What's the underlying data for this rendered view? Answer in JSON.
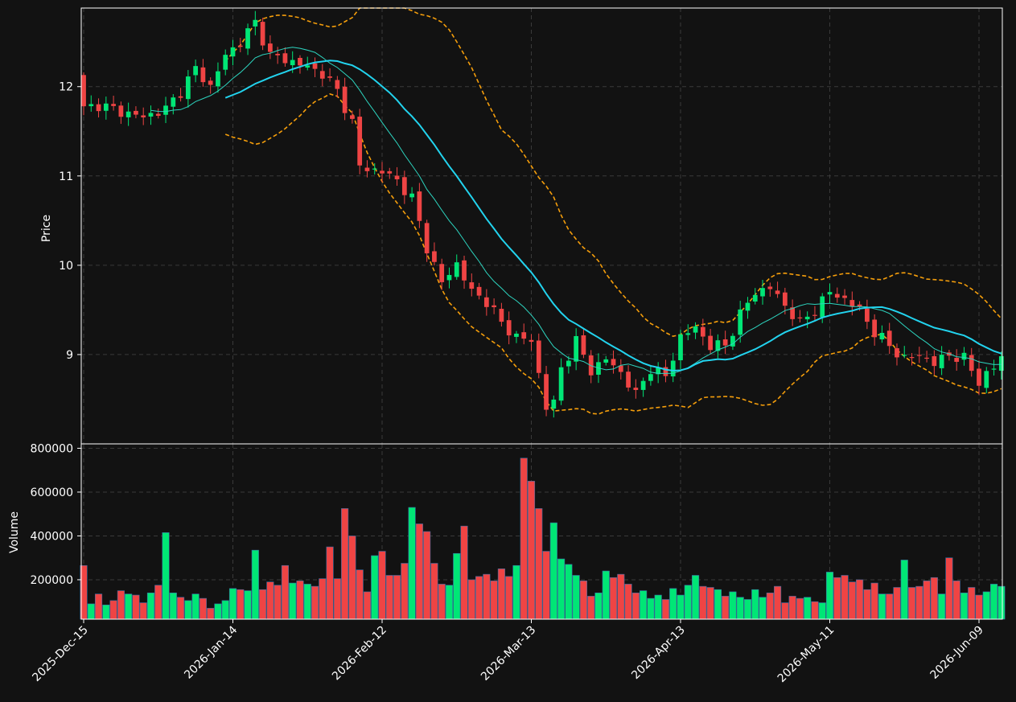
{
  "chart_data": {
    "type": "candlestick",
    "panels": [
      "price",
      "volume"
    ],
    "grid": true,
    "colors": {
      "background": "#121212",
      "up": "#00e676",
      "down": "#ef4444",
      "sma_fast": "#2dd4bf",
      "sma_slow": "#22d3ee",
      "bollinger": "#f59e0b",
      "grid": "#3a3a3a",
      "text": "#ffffff"
    },
    "price_panel": {
      "ylabel": "Price",
      "ylim": [
        8.0,
        12.88
      ],
      "yticks": [
        9,
        10,
        11,
        12
      ],
      "ytick_labels": [
        "9",
        "10",
        "11",
        "12"
      ]
    },
    "volume_panel": {
      "ylabel": "Volume",
      "ylim": [
        20000,
        820000
      ],
      "yticks": [
        200000,
        400000,
        600000,
        800000
      ],
      "ytick_labels": [
        "200000",
        "400000",
        "600000",
        "800000"
      ]
    },
    "xtick_labels": [
      "2025-Dec-15",
      "2026-Jan-14",
      "2026-Feb-12",
      "2026-Mar-13",
      "2026-Apr-13",
      "2026-May-11",
      "2026-Jun-09"
    ],
    "xtick_index": [
      0,
      20,
      40,
      60,
      80,
      100,
      120
    ],
    "n_bars": 124,
    "close_anchors": [
      [
        0,
        11.75
      ],
      [
        2,
        11.8
      ],
      [
        5,
        11.72
      ],
      [
        8,
        11.66
      ],
      [
        11,
        11.75
      ],
      [
        13,
        11.95
      ],
      [
        15,
        12.2
      ],
      [
        17,
        12.0
      ],
      [
        19,
        12.35
      ],
      [
        21,
        12.5
      ],
      [
        23,
        12.72
      ],
      [
        25,
        12.35
      ],
      [
        28,
        12.28
      ],
      [
        30,
        12.22
      ],
      [
        32,
        12.15
      ],
      [
        34,
        11.95
      ],
      [
        36,
        11.6
      ],
      [
        37,
        11.1
      ],
      [
        40,
        11.05
      ],
      [
        42,
        10.95
      ],
      [
        44,
        10.75
      ],
      [
        46,
        10.2
      ],
      [
        48,
        9.8
      ],
      [
        50,
        10.02
      ],
      [
        52,
        9.7
      ],
      [
        54,
        9.6
      ],
      [
        56,
        9.35
      ],
      [
        58,
        9.2
      ],
      [
        60,
        9.15
      ],
      [
        62,
        8.42
      ],
      [
        63,
        8.45
      ],
      [
        64,
        8.85
      ],
      [
        66,
        9.15
      ],
      [
        68,
        8.82
      ],
      [
        70,
        8.95
      ],
      [
        72,
        8.8
      ],
      [
        74,
        8.55
      ],
      [
        76,
        8.85
      ],
      [
        78,
        8.75
      ],
      [
        80,
        9.2
      ],
      [
        82,
        9.3
      ],
      [
        84,
        9.1
      ],
      [
        86,
        9.1
      ],
      [
        88,
        9.45
      ],
      [
        90,
        9.7
      ],
      [
        92,
        9.75
      ],
      [
        94,
        9.55
      ],
      [
        96,
        9.35
      ],
      [
        98,
        9.5
      ],
      [
        100,
        9.7
      ],
      [
        102,
        9.62
      ],
      [
        104,
        9.5
      ],
      [
        106,
        9.25
      ],
      [
        108,
        9.1
      ],
      [
        110,
        8.95
      ],
      [
        112,
        9.0
      ],
      [
        114,
        8.9
      ],
      [
        116,
        9.0
      ],
      [
        118,
        8.95
      ],
      [
        120,
        8.7
      ],
      [
        122,
        8.85
      ],
      [
        123,
        8.98
      ]
    ],
    "volume_values": [
      265000,
      90000,
      135000,
      85000,
      105000,
      150000,
      135000,
      130000,
      95000,
      140000,
      175000,
      415000,
      140000,
      120000,
      105000,
      135000,
      115000,
      70000,
      90000,
      105000,
      160000,
      155000,
      150000,
      335000,
      155000,
      190000,
      175000,
      265000,
      185000,
      195000,
      180000,
      170000,
      205000,
      350000,
      205000,
      525000,
      400000,
      245000,
      145000,
      310000,
      330000,
      220000,
      220000,
      275000,
      530000,
      455000,
      420000,
      275000,
      180000,
      175000,
      320000,
      445000,
      200000,
      215000,
      225000,
      195000,
      250000,
      215000,
      265000,
      755000,
      650000,
      525000,
      330000,
      460000,
      295000,
      270000,
      220000,
      195000,
      125000,
      140000,
      240000,
      210000,
      225000,
      180000,
      140000,
      150000,
      115000,
      130000,
      110000,
      160000,
      130000,
      175000,
      220000,
      170000,
      165000,
      155000,
      125000,
      145000,
      120000,
      110000,
      155000,
      120000,
      140000,
      170000,
      95000,
      125000,
      115000,
      120000,
      100000,
      95000,
      235000,
      210000,
      220000,
      190000,
      200000,
      155000,
      185000,
      135000,
      135000,
      165000,
      290000,
      165000,
      170000,
      195000,
      210000,
      135000,
      300000,
      195000,
      140000,
      165000,
      130000,
      145000,
      180000,
      170000
    ],
    "sma_fast_period": 10,
    "sma_slow_period": 20,
    "bollinger_period": 20,
    "bollinger_std": 2
  }
}
